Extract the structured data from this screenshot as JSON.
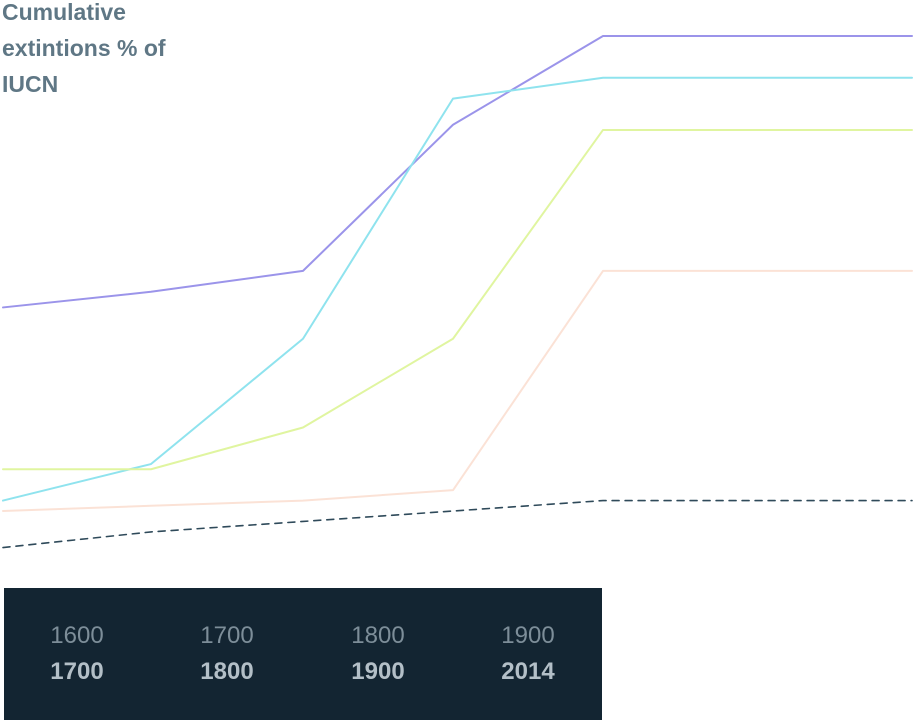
{
  "chart_data": {
    "type": "line",
    "title_lines": [
      "Cumulative",
      "extintions % of",
      "IUCN"
    ],
    "categories": [
      {
        "start": "1600",
        "end": "1700"
      },
      {
        "start": "1700",
        "end": "1800"
      },
      {
        "start": "1800",
        "end": "1900"
      },
      {
        "start": "1900",
        "end": "2014"
      }
    ],
    "x": [
      "1600",
      "1700",
      "1800",
      "1900",
      "2014"
    ],
    "ylim": [
      0,
      100
    ],
    "series": [
      {
        "color": "#9b94ea",
        "values": [
          48,
          51,
          55,
          83,
          100
        ],
        "style": "solid"
      },
      {
        "color": "#8fe3ee",
        "values": [
          11,
          18,
          42,
          88,
          92
        ],
        "style": "solid"
      },
      {
        "color": "#e0f5a0",
        "values": [
          17,
          17,
          25,
          42,
          82
        ],
        "style": "solid"
      },
      {
        "color": "#fbe2d6",
        "values": [
          9,
          10,
          11,
          13,
          55
        ],
        "style": "solid"
      },
      {
        "color": "#2f4a5a",
        "values": [
          2,
          5,
          7,
          9,
          11
        ],
        "style": "dashed"
      }
    ],
    "colors": {
      "axis_band": "#132532",
      "start_label": "#7d8e99",
      "end_label": "#b3bfc7",
      "gridline": "#6f8592",
      "title": "#5f7785"
    }
  }
}
